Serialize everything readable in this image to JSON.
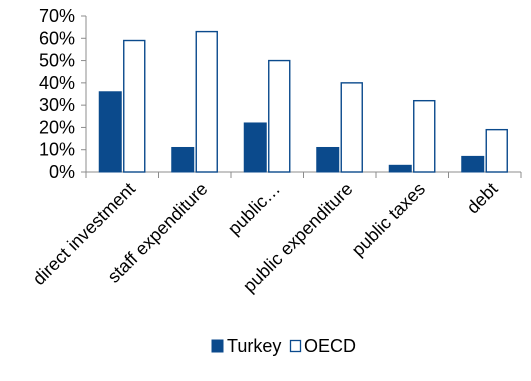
{
  "chart_data": {
    "type": "bar",
    "categories": [
      "direct investment",
      "staff expenditure",
      "public…",
      "public expenditure",
      "public taxes",
      "debt"
    ],
    "series": [
      {
        "name": "Turkey",
        "values": [
          36,
          11,
          22,
          11,
          3,
          7
        ],
        "color": "#0b4a8c",
        "fill_style": "solid"
      },
      {
        "name": "OECD",
        "values": [
          59,
          63,
          50,
          40,
          32,
          19
        ],
        "color": "#ffffff",
        "stroke": "#0b4a8c",
        "fill_style": "outline"
      }
    ],
    "y_ticks": [
      "0%",
      "10%",
      "20%",
      "30%",
      "40%",
      "50%",
      "60%",
      "70%"
    ],
    "ylim": [
      0,
      70
    ],
    "y_unit": "%",
    "grid": false,
    "legend_position": "bottom",
    "title": "",
    "xlabel": "",
    "ylabel": ""
  }
}
